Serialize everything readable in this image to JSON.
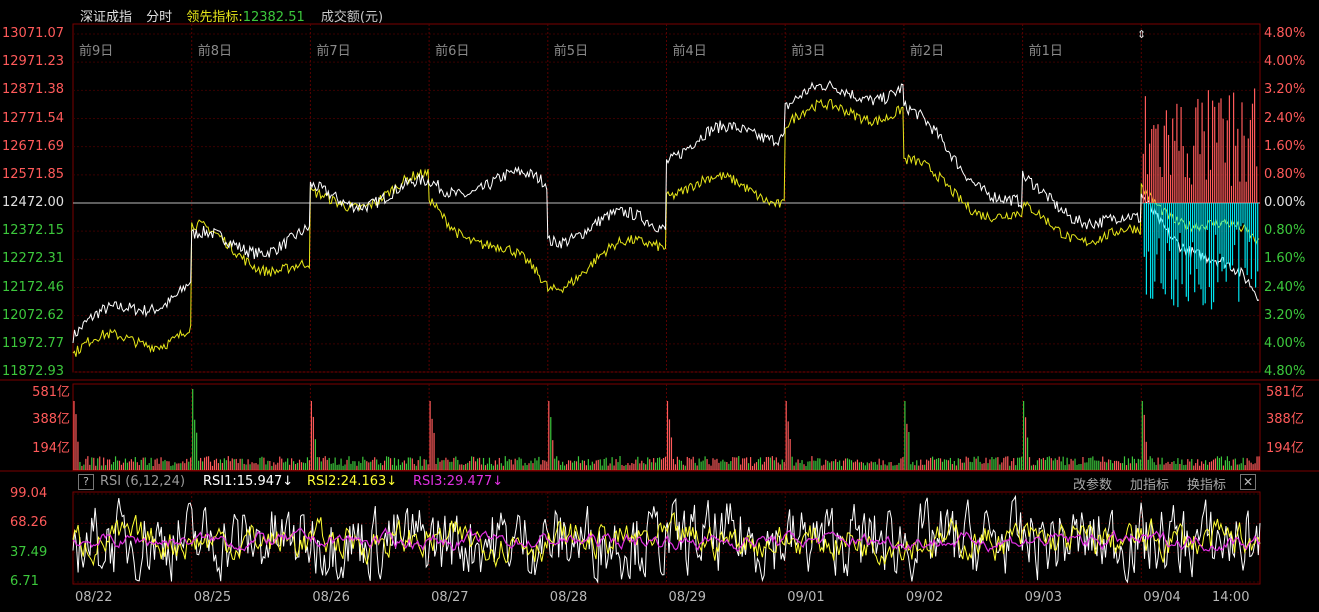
{
  "header": {
    "index_name": "深证成指",
    "mode": "分时",
    "leader_label": "领先指标:",
    "leader_value": "12382.51",
    "volume_label": "成交额(元)"
  },
  "price_axis_left": [
    "13071.07",
    "12971.23",
    "12871.38",
    "12771.54",
    "12671.69",
    "12571.85",
    "12472.00",
    "12372.15",
    "12272.31",
    "12172.46",
    "12072.62",
    "11972.77",
    "11872.93"
  ],
  "pct_axis_right": [
    "4.80%",
    "4.00%",
    "3.20%",
    "2.40%",
    "1.60%",
    "0.80%",
    "0.00%",
    "0.80%",
    "1.60%",
    "2.40%",
    "3.20%",
    "4.00%",
    "4.80%"
  ],
  "day_labels": [
    "前9日",
    "前8日",
    "前7日",
    "前6日",
    "前5日",
    "前4日",
    "前3日",
    "前2日",
    "前1日"
  ],
  "volume_axis": [
    "581亿",
    "388亿",
    "194亿"
  ],
  "rsi": {
    "name": "RSI (6,12,24)",
    "help": "?",
    "rsi1": "RSI1:15.947↓",
    "rsi2": "RSI2:24.163↓",
    "rsi3": "RSI3:29.477↓",
    "axis": [
      "99.04",
      "68.26",
      "37.49",
      "6.71"
    ],
    "btn_params": "改参数",
    "btn_add": "加指标",
    "btn_switch": "换指标",
    "btn_close": "✕"
  },
  "dates": [
    "08/22",
    "08/25",
    "08/26",
    "08/27",
    "08/28",
    "08/29",
    "09/01",
    "09/02",
    "09/03",
    "09/04",
    "14:00"
  ],
  "colors": {
    "up": "#ff5a5a",
    "down": "#3cc83c",
    "price_line": "#ffffff",
    "leader_line": "#e6e619",
    "cyan": "#00e5f0",
    "grid": "#4a0000",
    "rsi1": "#ffffff",
    "rsi2": "#ffff33",
    "rsi3": "#e030e0"
  }
}
